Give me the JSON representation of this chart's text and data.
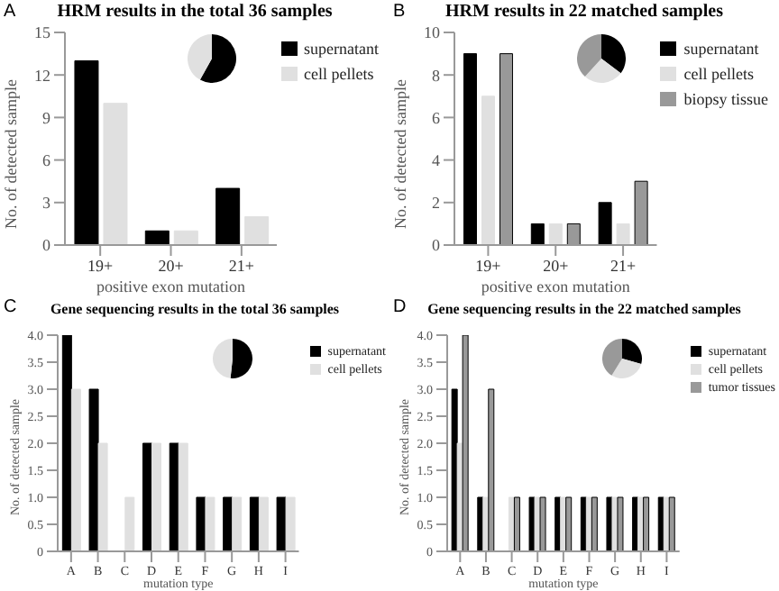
{
  "chart_data": [
    {
      "type": "bar",
      "title": "HRM results in the total 36 samples",
      "annotations": [
        "A"
      ],
      "xlabel": "positive exon mutation",
      "ylabel": "No. of detected sample",
      "categories": [
        "19+",
        "20+",
        "21+"
      ],
      "series": [
        {
          "name": "supernatant",
          "color": "#000000",
          "values": [
            13,
            1,
            4
          ]
        },
        {
          "name": "cell pellets",
          "color": "#e0e0e0",
          "values": [
            10,
            1,
            2
          ]
        }
      ],
      "ylim": [
        0,
        15
      ],
      "yticks": [
        0,
        3,
        6,
        9,
        12,
        15
      ],
      "legend": "top right",
      "grid": false
    },
    {
      "type": "bar",
      "title": "HRM results in 22 matched samples",
      "annotations": [
        "B"
      ],
      "xlabel": "positive exon mutation",
      "ylabel": "No. of detected sample",
      "categories": [
        "19+",
        "20+",
        "21+"
      ],
      "series": [
        {
          "name": "supernatant",
          "color": "#000000",
          "values": [
            9,
            1,
            2
          ]
        },
        {
          "name": "cell pellets",
          "color": "#e0e0e0",
          "values": [
            7,
            1,
            1
          ]
        },
        {
          "name": "biopsy tissue",
          "color": "#999999",
          "values": [
            9,
            1,
            3
          ]
        }
      ],
      "ylim": [
        0,
        10
      ],
      "yticks": [
        0,
        2,
        4,
        6,
        8,
        10
      ],
      "legend": "top right",
      "grid": false
    },
    {
      "type": "bar",
      "title": "Gene sequencing results in the total 36 samples",
      "annotations": [
        "C"
      ],
      "xlabel": "mutation type",
      "ylabel": "No. of detected sample",
      "categories": [
        "A",
        "B",
        "C",
        "D",
        "E",
        "F",
        "G",
        "H",
        "I"
      ],
      "series": [
        {
          "name": "supernatant",
          "color": "#000000",
          "values": [
            4,
            3,
            0,
            2,
            2,
            1,
            1,
            1,
            1
          ]
        },
        {
          "name": "cell pellets",
          "color": "#e0e0e0",
          "values": [
            3,
            2,
            1,
            2,
            2,
            1,
            1,
            1,
            1
          ]
        }
      ],
      "ylim": [
        0,
        4
      ],
      "yticks": [
        0,
        0.5,
        {
          "value": 1,
          "label": "1.0"
        },
        1.5,
        {
          "value": 2,
          "label": "2.0"
        },
        2.5,
        {
          "value": 3,
          "label": "3.0"
        },
        3.5,
        {
          "value": 4,
          "label": "4.0"
        }
      ],
      "legend": "top right",
      "grid": false
    },
    {
      "type": "bar",
      "title": "Gene sequencing results in the 22 matched samples",
      "annotations": [
        "D"
      ],
      "xlabel": "mutation type",
      "ylabel": "No. of detected sample",
      "categories": [
        "A",
        "B",
        "C",
        "D",
        "E",
        "F",
        "G",
        "H",
        "I"
      ],
      "series": [
        {
          "name": "supernatant",
          "color": "#000000",
          "values": [
            3,
            1,
            0,
            1,
            1,
            1,
            1,
            1,
            1
          ]
        },
        {
          "name": "cell pellets",
          "color": "#e0e0e0",
          "values": [
            2,
            1,
            1,
            1,
            1,
            1,
            1,
            1,
            1
          ]
        },
        {
          "name": "tumor tissues",
          "color": "#999999",
          "values": [
            4,
            3,
            1,
            1,
            1,
            1,
            1,
            1,
            1
          ]
        }
      ],
      "ylim": [
        0,
        4
      ],
      "yticks": [
        0,
        0.5,
        {
          "value": 1,
          "label": "1.0"
        },
        1.5,
        {
          "value": 2,
          "label": "2.0"
        },
        2.5,
        {
          "value": 3,
          "label": "3.0"
        },
        3.5,
        {
          "value": 4,
          "label": "4.0"
        }
      ],
      "legend": "top right",
      "grid": false
    }
  ]
}
